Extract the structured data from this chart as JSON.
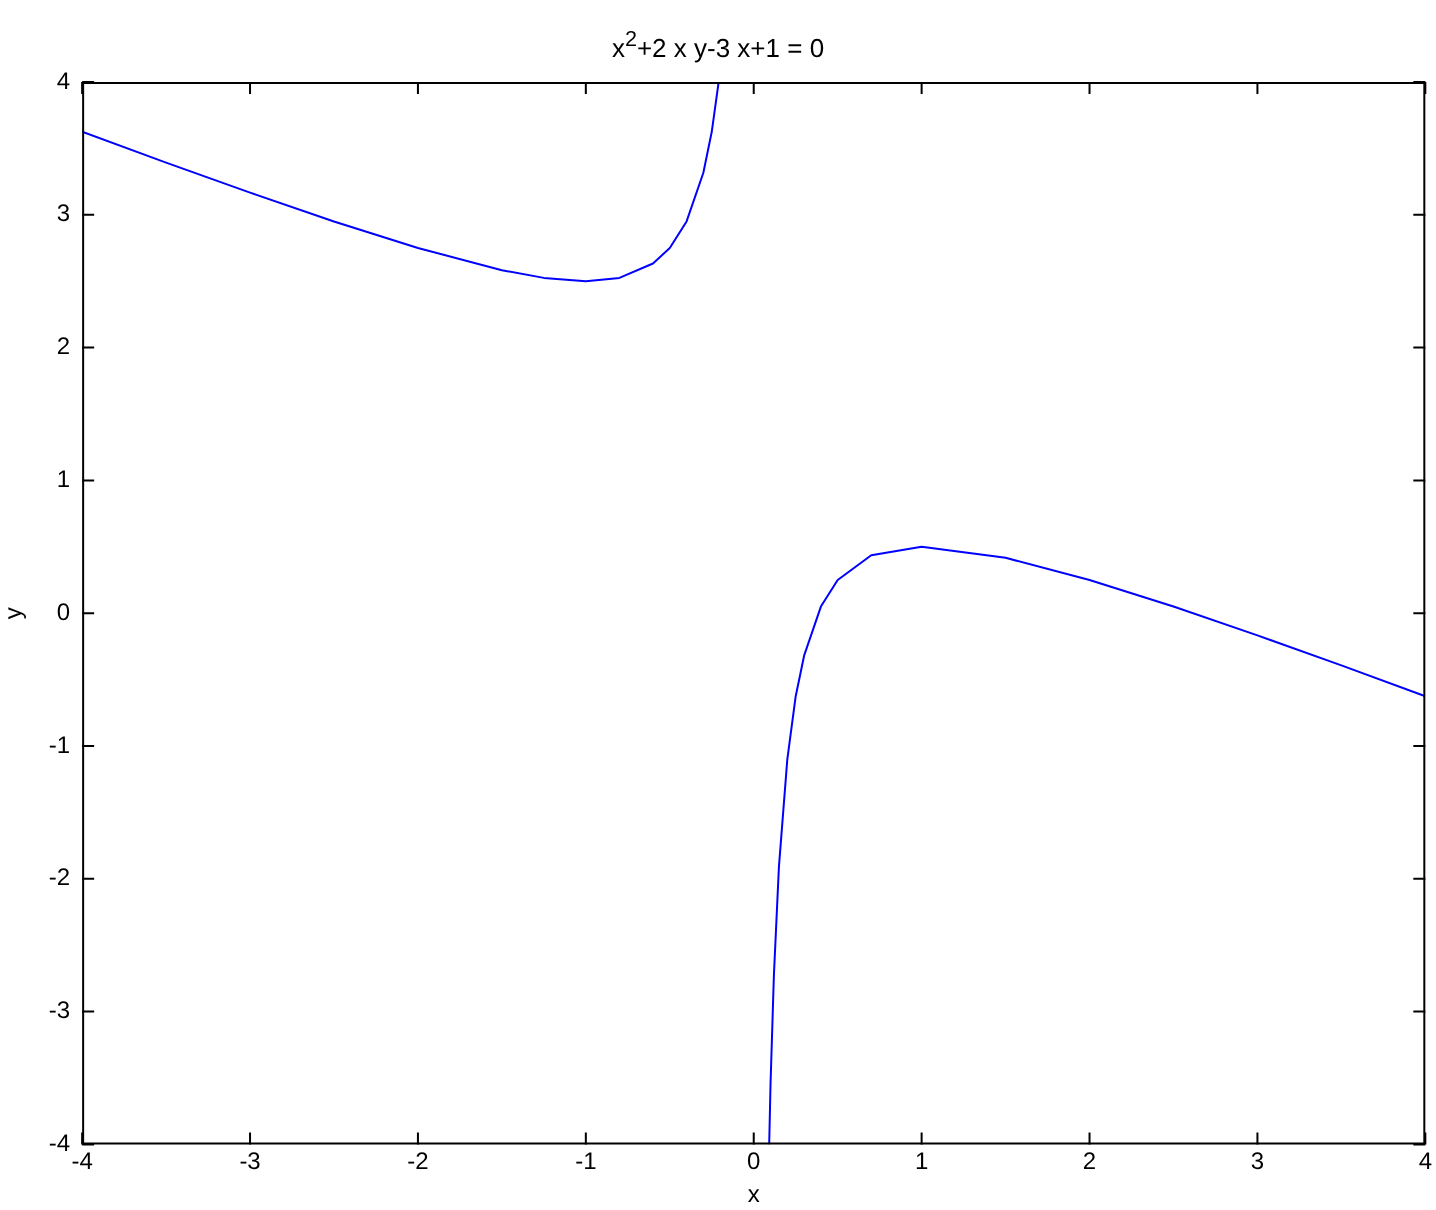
{
  "chart_data": {
    "type": "line",
    "title": "x$^{2}$+2 x y-3 x+1 = 0",
    "xlabel": "x",
    "ylabel": "y",
    "series": [
      {
        "color": "#0000ff",
        "x": [
          -4,
          -3.5,
          -3,
          -2.5,
          -2,
          -1.5,
          -1.25,
          -1,
          -0.8,
          -0.6,
          -0.5,
          -0.4,
          -0.3,
          -0.25,
          -0.209
        ],
        "values": [
          3.625,
          3.393,
          3.167,
          2.95,
          2.75,
          2.583,
          2.525,
          2.5,
          2.525,
          2.633,
          2.75,
          2.95,
          3.317,
          3.625,
          4
        ]
      },
      {
        "color": "#0000ff",
        "x": [
          0.092,
          0.1,
          0.12,
          0.15,
          0.2,
          0.25,
          0.3,
          0.4,
          0.5,
          0.7,
          1,
          1.5,
          2,
          2.5,
          3,
          3.5,
          4
        ],
        "values": [
          -4,
          -3.55,
          -2.73,
          -1.91,
          -1.1,
          -0.625,
          -0.32,
          0.05,
          0.25,
          0.436,
          0.5,
          0.417,
          0.25,
          0.05,
          -0.167,
          -0.393,
          -0.625
        ]
      }
    ],
    "xlim": [
      -4,
      4
    ],
    "ylim": [
      -4,
      4
    ],
    "xticks": [
      -4,
      -3,
      -2,
      -1,
      0,
      1,
      2,
      3,
      4
    ],
    "yticks": [
      -4,
      -3,
      -2,
      -1,
      0,
      1,
      2,
      3,
      4
    ],
    "grid": false,
    "legend": false,
    "marker": "none",
    "line_style": "solid"
  }
}
